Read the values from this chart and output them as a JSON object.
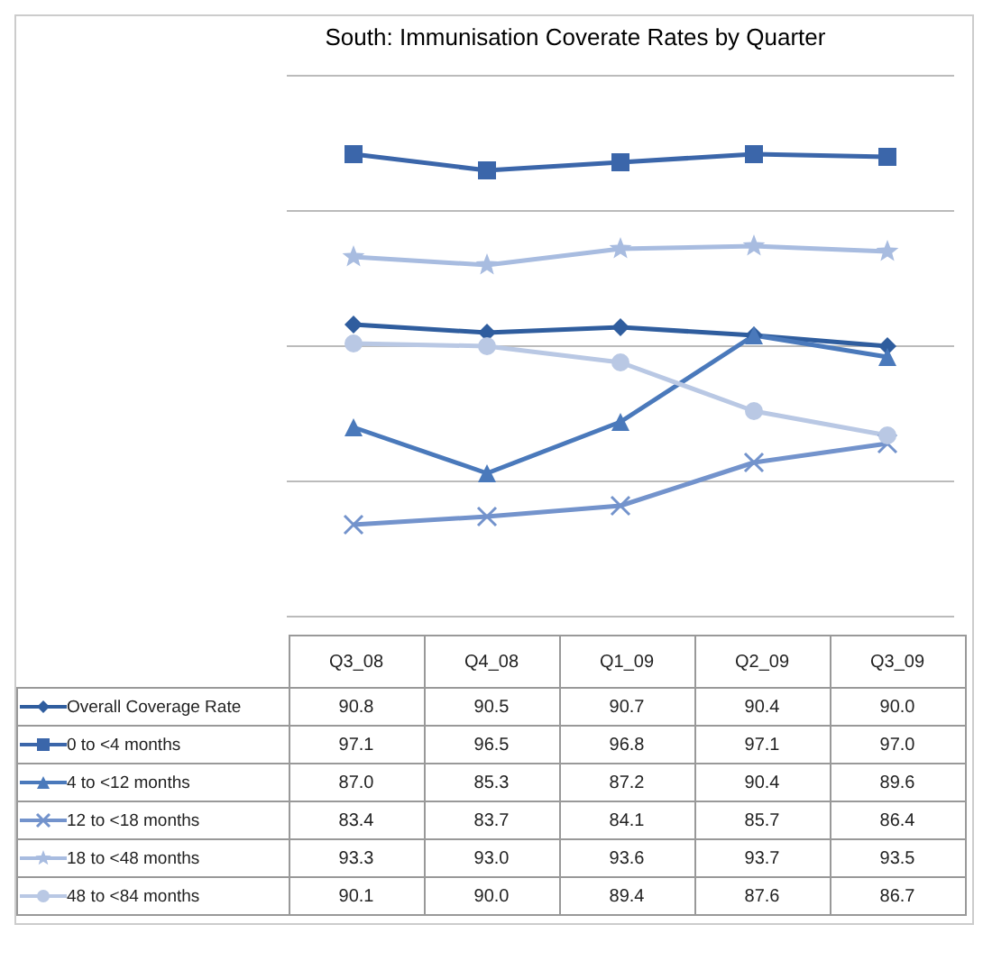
{
  "chart_data": {
    "type": "line",
    "title": "South: Immunisation Coverate Rates by Quarter",
    "categories": [
      "Q3_08",
      "Q4_08",
      "Q1_09",
      "Q2_09",
      "Q3_09"
    ],
    "series": [
      {
        "name": "Overall Coverage Rate",
        "color": "#2f5d9e",
        "marker": "diamond",
        "values": [
          90.8,
          90.5,
          90.7,
          90.4,
          90.0
        ],
        "value_labels": [
          "90.8",
          "90.5",
          "90.7",
          "90.4",
          "90.0"
        ]
      },
      {
        "name": "0 to <4 months",
        "color": "#3b66aa",
        "marker": "square",
        "values": [
          97.1,
          96.5,
          96.8,
          97.1,
          97.0
        ],
        "value_labels": [
          "97.1",
          "96.5",
          "96.8",
          "97.1",
          "97.0"
        ]
      },
      {
        "name": "4 to <12 months",
        "color": "#4a79bb",
        "marker": "triangle",
        "values": [
          87.0,
          85.3,
          87.2,
          90.4,
          89.6
        ],
        "value_labels": [
          "87.0",
          "85.3",
          "87.2",
          "90.4",
          "89.6"
        ]
      },
      {
        "name": "12 to <18 months",
        "color": "#7393cc",
        "marker": "cross",
        "values": [
          83.4,
          83.7,
          84.1,
          85.7,
          86.4
        ],
        "value_labels": [
          "83.4",
          "83.7",
          "84.1",
          "85.7",
          "86.4"
        ]
      },
      {
        "name": "18 to <48 months",
        "color": "#a8bce0",
        "marker": "star",
        "values": [
          93.3,
          93.0,
          93.6,
          93.7,
          93.5
        ],
        "value_labels": [
          "93.3",
          "93.0",
          "93.6",
          "93.7",
          "93.5"
        ]
      },
      {
        "name": "48 to <84 months",
        "color": "#b9c8e4",
        "marker": "circle",
        "values": [
          90.1,
          90.0,
          89.4,
          87.6,
          86.7
        ],
        "value_labels": [
          "90.1",
          "90.0",
          "89.4",
          "87.6",
          "86.7"
        ]
      }
    ],
    "ylim": [
      80,
      100
    ],
    "yticks": [
      {
        "value": 80,
        "label": null
      },
      {
        "value": 85,
        "label": null
      },
      {
        "value": 90,
        "label": null
      },
      {
        "value": 95,
        "label": null
      },
      {
        "value": 100,
        "label": null
      }
    ],
    "grid": "y",
    "legend": "bottom",
    "line_style": "solid"
  }
}
